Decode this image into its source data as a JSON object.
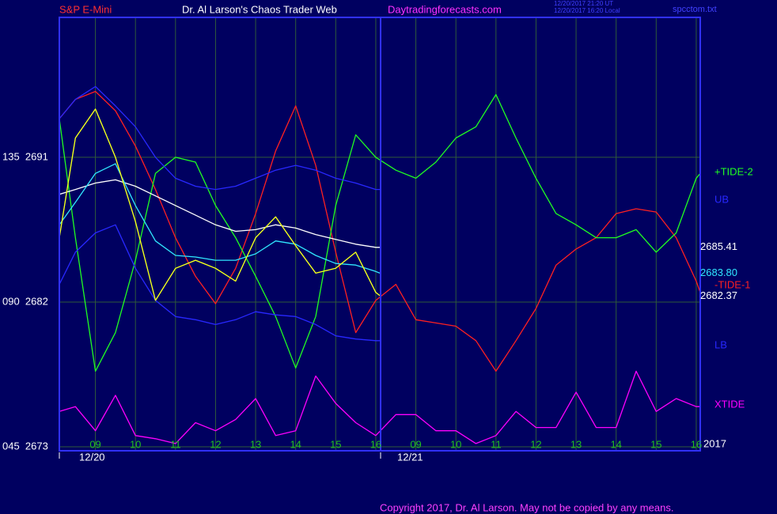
{
  "header": {
    "symbol": "S&P E-Mini",
    "site_title": "Dr. Al Larson's Chaos Trader Web",
    "site_url": "Daytradingforecasts.com",
    "stamp_ut": "12/20/2017 21:20 UT",
    "stamp_local": "12/20/2017 16:20 Local",
    "file": "spcctom.txt"
  },
  "footer": {
    "copyright": "Copyright 2017, Dr. Al Larson. May not be copied by any means."
  },
  "chart_data": {
    "type": "line",
    "xlim": [
      -0.9,
      15.1
    ],
    "ylim": [
      2673,
      2699.7
    ],
    "xticks": [
      {
        "value": 0,
        "label": "09"
      },
      {
        "value": 1,
        "label": "10"
      },
      {
        "value": 2,
        "label": "11"
      },
      {
        "value": 3,
        "label": "12"
      },
      {
        "value": 4,
        "label": "13"
      },
      {
        "value": 5,
        "label": "14"
      },
      {
        "value": 6,
        "label": "15"
      },
      {
        "value": 7,
        "label": "16"
      },
      {
        "value": 8,
        "label": "09"
      },
      {
        "value": 9,
        "label": "10"
      },
      {
        "value": 10,
        "label": "11"
      },
      {
        "value": 11,
        "label": "12"
      },
      {
        "value": 12,
        "label": "13"
      },
      {
        "value": 13,
        "label": "14"
      },
      {
        "value": 14,
        "label": "15"
      },
      {
        "value": 15,
        "label": "16"
      }
    ],
    "yticks": [
      {
        "value": 2673,
        "label": "045  2673"
      },
      {
        "value": 2682,
        "label": "090  2682"
      },
      {
        "value": 2691,
        "label": "135  2691"
      }
    ],
    "dates": [
      "12/20",
      "12/21"
    ],
    "year": "2017",
    "grid": true,
    "series": [
      {
        "name": "XTIDE",
        "color": "#ff00ff",
        "x": [
          -0.9,
          -0.5,
          0,
          0.5,
          1,
          1.5,
          2,
          2.5,
          3,
          3.5,
          4,
          4.5,
          5,
          5.5,
          6,
          6.5,
          7,
          7.5,
          8,
          8.5,
          9,
          9.5,
          10,
          10.5,
          11,
          11.5,
          12,
          12.5,
          13,
          13.5,
          14,
          14.5,
          15,
          15.1
        ],
        "values": [
          2675.2,
          2675.5,
          2674.0,
          2676.2,
          2673.7,
          2673.5,
          2673.2,
          2674.5,
          2674.0,
          2674.7,
          2676.0,
          2673.7,
          2674.0,
          2677.4,
          2675.7,
          2674.5,
          2673.7,
          2675.0,
          2675.0,
          2674.0,
          2674.0,
          2673.2,
          2673.7,
          2675.2,
          2674.2,
          2674.2,
          2676.4,
          2674.2,
          2674.2,
          2677.7,
          2675.2,
          2676.0,
          2675.5,
          2675.5
        ]
      },
      {
        "name": "-TIDE-1",
        "color": "#ff2020",
        "x": [
          -0.9,
          -0.5,
          0,
          0.5,
          1,
          1.5,
          2,
          2.5,
          3,
          3.5,
          4,
          4.5,
          5,
          5.5,
          6,
          6.5,
          7,
          7.5,
          8,
          8.5,
          9,
          9.5,
          10,
          10.5,
          11,
          11.5,
          12,
          12.5,
          13,
          13.5,
          14,
          14.5,
          15,
          15.1
        ],
        "values": [
          2693.4,
          2694.6,
          2695.1,
          2693.9,
          2691.7,
          2689.0,
          2686.0,
          2683.6,
          2681.9,
          2684.1,
          2687.5,
          2691.4,
          2694.2,
          2690.5,
          2685.1,
          2680.1,
          2682.1,
          2683.1,
          2680.9,
          2680.7,
          2680.5,
          2679.6,
          2677.7,
          2679.6,
          2681.6,
          2684.3,
          2685.3,
          2686.0,
          2687.5,
          2687.8,
          2687.6,
          2686.0,
          2683.3,
          2682.6
        ]
      },
      {
        "name": "+TIDE-2",
        "color": "#20ff20",
        "x": [
          -0.9,
          -0.5,
          0,
          0.5,
          1,
          1.5,
          2,
          2.5,
          3,
          3.5,
          4,
          4.5,
          5,
          5.5,
          6,
          6.5,
          7,
          7.5,
          8,
          8.5,
          9,
          9.5,
          10,
          10.5,
          11,
          11.5,
          12,
          12.5,
          13,
          13.5,
          14,
          14.5,
          15,
          15.1
        ],
        "values": [
          2693.4,
          2686.0,
          2677.7,
          2680.1,
          2684.6,
          2690.0,
          2691.0,
          2690.7,
          2688.0,
          2686.0,
          2683.6,
          2681.1,
          2677.9,
          2681.1,
          2688.0,
          2692.4,
          2691.0,
          2690.2,
          2689.7,
          2690.7,
          2692.2,
          2692.9,
          2694.9,
          2692.2,
          2689.7,
          2687.5,
          2686.8,
          2686.0,
          2686.0,
          2686.5,
          2685.1,
          2686.3,
          2689.7,
          2690.0
        ]
      },
      {
        "name": "UB",
        "color": "#2828ff",
        "x": [
          -0.9,
          -0.5,
          0,
          0.5,
          1,
          1.5,
          2,
          2.5,
          3,
          3.5,
          4,
          4.5,
          5,
          5.5,
          6,
          6.5,
          7,
          7.1
        ],
        "values": [
          2693.4,
          2694.6,
          2695.4,
          2694.2,
          2692.9,
          2691.0,
          2689.7,
          2689.2,
          2689.0,
          2689.2,
          2689.7,
          2690.2,
          2690.5,
          2690.2,
          2689.7,
          2689.4,
          2689.0,
          2689.0
        ]
      },
      {
        "name": "LB",
        "color": "#2828ff",
        "x": [
          -0.9,
          -0.5,
          0,
          0.5,
          1,
          1.5,
          2,
          2.5,
          3,
          3.5,
          4,
          4.5,
          5,
          5.5,
          6,
          6.5,
          7,
          7.1
        ],
        "values": [
          2683.1,
          2685.1,
          2686.3,
          2686.8,
          2684.1,
          2682.1,
          2681.1,
          2680.9,
          2680.6,
          2680.9,
          2681.4,
          2681.2,
          2681.1,
          2680.6,
          2679.9,
          2679.7,
          2679.6,
          2679.6
        ]
      },
      {
        "color": "#ffffff",
        "x": [
          -0.9,
          -0.5,
          0,
          0.5,
          1,
          1.5,
          2,
          2.5,
          3,
          3.5,
          4,
          4.5,
          5,
          5.5,
          6,
          6.5,
          7,
          7.1
        ],
        "values": [
          2688.7,
          2689.0,
          2689.4,
          2689.6,
          2689.2,
          2688.6,
          2688.0,
          2687.4,
          2686.8,
          2686.4,
          2686.5,
          2686.8,
          2686.6,
          2686.2,
          2685.9,
          2685.6,
          2685.4,
          2685.4
        ],
        "last_value": 2685.41
      },
      {
        "color": "#30e8ff",
        "x": [
          -0.9,
          -0.5,
          0,
          0.5,
          1,
          1.5,
          2,
          2.5,
          3,
          3.5,
          4,
          4.5,
          5,
          5.5,
          6,
          6.5,
          7,
          7.1
        ],
        "values": [
          2686.8,
          2688.2,
          2690.0,
          2690.6,
          2688.0,
          2685.8,
          2684.9,
          2684.8,
          2684.6,
          2684.6,
          2685.0,
          2685.8,
          2685.6,
          2684.9,
          2684.4,
          2684.3,
          2683.9,
          2683.8
        ],
        "last_value": {
          "value": 2683.8,
          "label": "2683.80"
        }
      },
      {
        "color": "#ffff20",
        "halo": "#00a000",
        "x": [
          -0.9,
          -0.5,
          0,
          0.5,
          1,
          1.5,
          2,
          2.5,
          3,
          3.5,
          4,
          4.5,
          5,
          5.5,
          6,
          6.5,
          7,
          7.1
        ],
        "values": [
          2686.0,
          2692.2,
          2694.0,
          2691.0,
          2687.0,
          2682.1,
          2684.1,
          2684.6,
          2684.1,
          2683.3,
          2686.0,
          2687.3,
          2685.5,
          2683.8,
          2684.1,
          2685.1,
          2682.6,
          2682.4
        ],
        "last_value": 2682.37
      }
    ]
  }
}
